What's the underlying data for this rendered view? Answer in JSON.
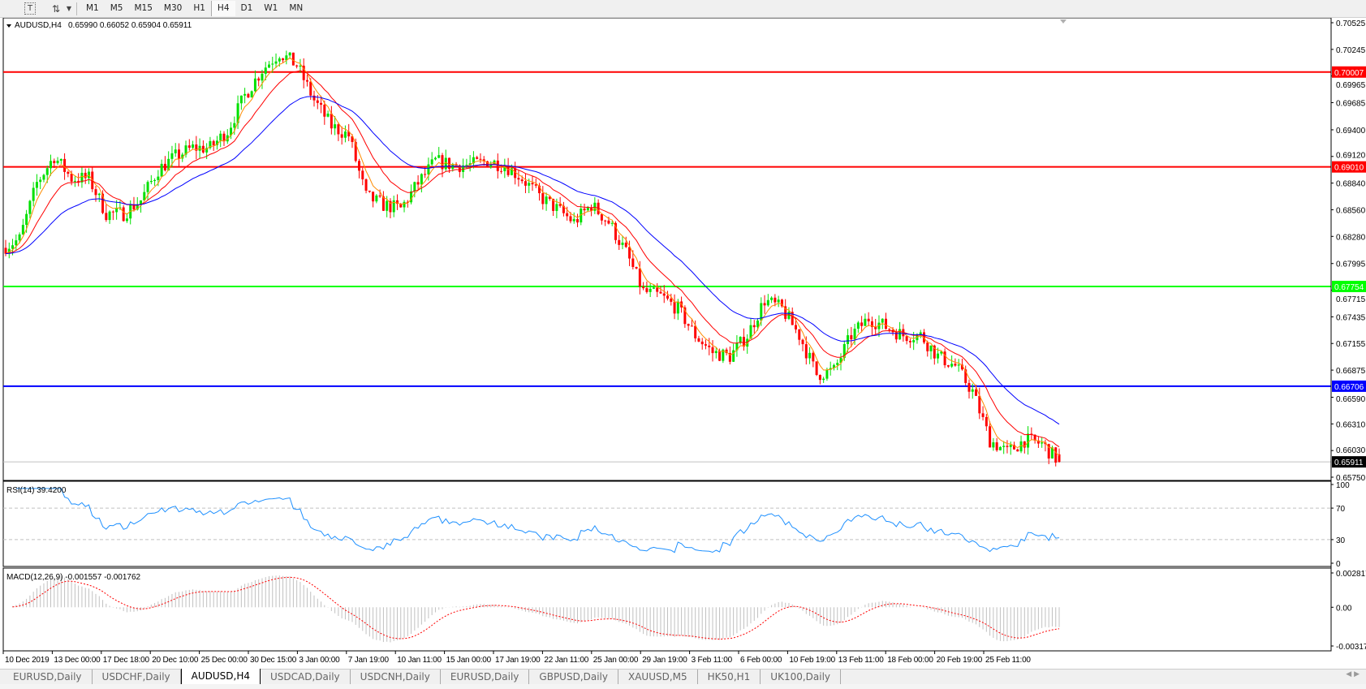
{
  "toolbar": {
    "tools": [
      {
        "icon": "text-tool-icon",
        "label": "T"
      },
      {
        "icon": "arrows-tool-icon",
        "label": "⇅"
      }
    ],
    "timeframes": [
      "M1",
      "M5",
      "M15",
      "M30",
      "H1",
      "H4",
      "D1",
      "W1",
      "MN"
    ],
    "active_timeframe": "H4"
  },
  "chart_header": {
    "symbol": "AUDUSD,H4",
    "ohlc": "0.65990 0.66052 0.65904 0.65911"
  },
  "colors": {
    "bull": "#00e000",
    "bear": "#ff0000",
    "ma_fast": "#ff8c00",
    "ma_mid": "#ff0000",
    "ma_slow": "#0000ff",
    "rsi": "#1e90ff",
    "macd_signal": "#ff0000",
    "macd_hist": "#c0c0c0"
  },
  "chart_data": {
    "type": "candlestick",
    "symbol": "AUDUSD",
    "timeframe": "H4",
    "approx_close_path": [
      0.6816,
      0.6825,
      0.6884,
      0.6912,
      0.6889,
      0.6889,
      0.6852,
      0.6852,
      0.6866,
      0.6898,
      0.6912,
      0.6921,
      0.6921,
      0.6939,
      0.6976,
      0.7003,
      0.7021,
      0.7008,
      0.6971,
      0.6944,
      0.6934,
      0.687,
      0.6861,
      0.6857,
      0.6884,
      0.6907,
      0.6903,
      0.6903,
      0.6907,
      0.6903,
      0.6889,
      0.687,
      0.6857,
      0.6843,
      0.6861,
      0.6843,
      0.6811,
      0.677,
      0.6765,
      0.6752,
      0.6724,
      0.6706,
      0.6702,
      0.6724,
      0.6761,
      0.6752,
      0.6724,
      0.6683,
      0.6687,
      0.6724,
      0.6742,
      0.6733,
      0.6724,
      0.6724,
      0.6702,
      0.6692,
      0.6665,
      0.6614,
      0.6601,
      0.6614,
      0.661,
      0.65911
    ],
    "last_bar": {
      "open": 0.6599,
      "high": 0.66052,
      "low": 0.65904,
      "close": 0.65911
    },
    "y_ticks": [
      "0.70525",
      "0.70245",
      "0.69965",
      "0.69685",
      "0.69400",
      "0.69120",
      "0.68840",
      "0.68560",
      "0.68280",
      "0.67995",
      "0.67715",
      "0.67435",
      "0.67155",
      "0.66875",
      "0.66590",
      "0.66310",
      "0.66030",
      "0.65750"
    ],
    "ylim": [
      0.6575,
      0.70525
    ],
    "horizontal_lines": [
      {
        "price": 0.70007,
        "label": "0.70007",
        "color": "#ff0000"
      },
      {
        "price": 0.6901,
        "label": "0.69010",
        "color": "#ff0000"
      },
      {
        "price": 0.67754,
        "label": "0.67754",
        "color": "#00ff00"
      },
      {
        "price": 0.66706,
        "label": "0.66706",
        "color": "#0000ff"
      }
    ],
    "bid_line": {
      "price": 0.65911,
      "label": "0.65911"
    },
    "x_ticks": [
      "10 Dec 2019",
      "13 Dec 00:00",
      "17 Dec 18:00",
      "20 Dec 10:00",
      "25 Dec 00:00",
      "30 Dec 15:00",
      "3 Jan 00:00",
      "7 Jan 19:00",
      "10 Jan 11:00",
      "15 Jan 00:00",
      "17 Jan 19:00",
      "22 Jan 11:00",
      "25 Jan 00:00",
      "29 Jan 19:00",
      "3 Feb 11:00",
      "6 Feb 00:00",
      "10 Feb 19:00",
      "13 Feb 11:00",
      "18 Feb 00:00",
      "20 Feb 19:00",
      "25 Feb 11:00"
    ],
    "grid": false,
    "indicators": {
      "rsi": {
        "label": "RSI(14) 39.4200",
        "period": 14,
        "levels": [
          70,
          30
        ],
        "ticks": [
          "100",
          "70",
          "30",
          "0"
        ],
        "ylim": [
          0,
          100
        ]
      },
      "macd": {
        "label": "MACD(12,26,9) -0.001557 -0.001762",
        "ticks": [
          "0.002817",
          "0.00",
          "-0.003179"
        ],
        "ylim": [
          -0.003179,
          0.002817
        ]
      }
    }
  },
  "tabs": [
    "EURUSD,Daily",
    "USDCHF,Daily",
    "AUDUSD,H4",
    "USDCAD,Daily",
    "USDCNH,Daily",
    "EURUSD,Daily",
    "GBPUSD,Daily",
    "XAUUSD,M5",
    "HK50,H1",
    "UK100,Daily"
  ],
  "active_tab": "AUDUSD,H4"
}
